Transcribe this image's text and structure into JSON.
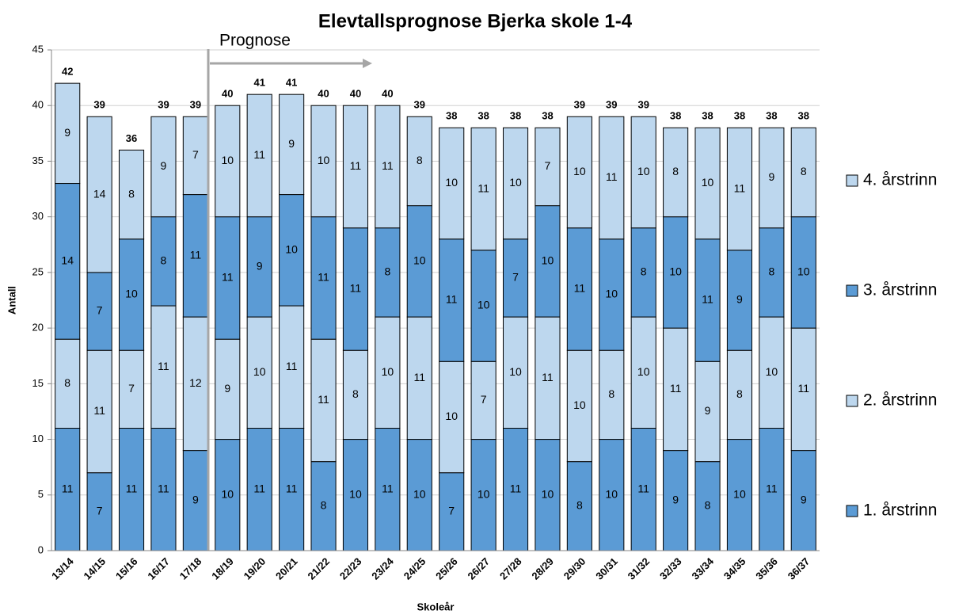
{
  "chart_data": {
    "type": "stacked_bar",
    "title": "Elevtallsprognose Bjerka skole 1-4",
    "annotation": "Prognose",
    "x_label": "Skoleår",
    "y_label": "Antall",
    "categories": [
      "13/14",
      "14/15",
      "15/16",
      "16/17",
      "17/18",
      "18/19",
      "19/20",
      "20/21",
      "21/22",
      "22/23",
      "23/24",
      "24/25",
      "25/26",
      "26/27",
      "27/28",
      "28/29",
      "29/30",
      "30/31",
      "31/32",
      "32/33",
      "33/34",
      "34/35",
      "35/36",
      "36/37"
    ],
    "series": [
      {
        "name": "1. årstrinn",
        "color": "#5b9bd5",
        "values": [
          11,
          7,
          11,
          11,
          9,
          10,
          11,
          11,
          8,
          10,
          11,
          10,
          7,
          10,
          11,
          10,
          8,
          10,
          11,
          9,
          8,
          10,
          11,
          9
        ]
      },
      {
        "name": "2. årstrinn",
        "color": "#bdd7ee",
        "values": [
          8,
          11,
          7,
          11,
          12,
          9,
          10,
          11,
          11,
          8,
          10,
          11,
          10,
          7,
          10,
          11,
          10,
          8,
          10,
          11,
          9,
          8,
          10,
          11
        ]
      },
      {
        "name": "3. årstrinn",
        "color": "#5b9bd5",
        "values": [
          14,
          7,
          10,
          8,
          11,
          11,
          9,
          10,
          11,
          11,
          8,
          10,
          11,
          10,
          7,
          10,
          11,
          10,
          8,
          10,
          11,
          9,
          8,
          10
        ]
      },
      {
        "name": "4. årstrinn",
        "color": "#bdd7ee",
        "values": [
          9,
          14,
          8,
          9,
          7,
          10,
          11,
          9,
          10,
          11,
          11,
          8,
          10,
          11,
          10,
          7,
          10,
          11,
          10,
          8,
          10,
          11,
          9,
          8
        ]
      }
    ],
    "totals": [
      42,
      39,
      36,
      39,
      39,
      40,
      41,
      41,
      40,
      40,
      40,
      39,
      38,
      38,
      38,
      38,
      39,
      39,
      39,
      38,
      38,
      38,
      38,
      38
    ],
    "ylim": [
      0,
      45
    ],
    "yticks": [
      0,
      5,
      10,
      15,
      20,
      25,
      30,
      35,
      40,
      45
    ],
    "grid": true,
    "legend": "right"
  }
}
